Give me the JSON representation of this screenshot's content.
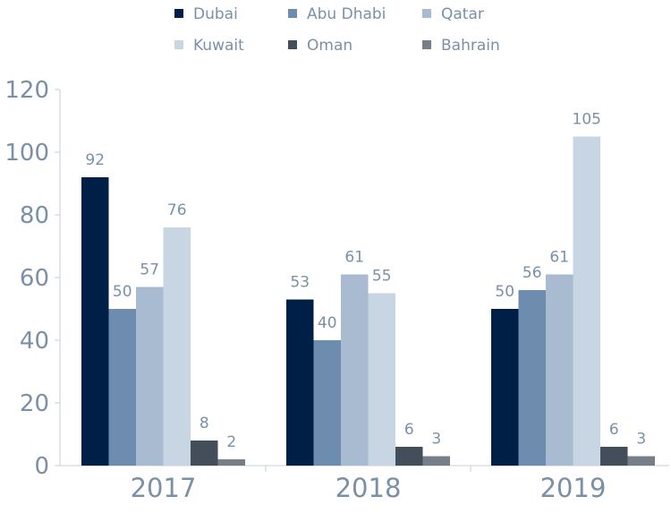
{
  "chart_data": {
    "type": "bar",
    "title": "",
    "xlabel": "",
    "ylabel": "",
    "categories": [
      "2017",
      "2018",
      "2019"
    ],
    "series": [
      {
        "name": "Dubai",
        "values": [
          92,
          53,
          50
        ],
        "color": "#001f47"
      },
      {
        "name": "Abu Dhabi",
        "values": [
          50,
          40,
          56
        ],
        "color": "#6e8cad"
      },
      {
        "name": "Qatar",
        "values": [
          57,
          61,
          61
        ],
        "color": "#a9bbd0"
      },
      {
        "name": "Kuwait",
        "values": [
          76,
          55,
          105
        ],
        "color": "#c8d6e4"
      },
      {
        "name": "Oman",
        "values": [
          8,
          6,
          6
        ],
        "color": "#444e5a"
      },
      {
        "name": "Bahrain",
        "values": [
          2,
          3,
          3
        ],
        "color": "#777e87"
      }
    ],
    "ylim": [
      0,
      120
    ],
    "yticks": [
      "0",
      "20",
      "40",
      "60",
      "80",
      "100",
      "120"
    ],
    "grid": false,
    "legend_position": "top"
  }
}
